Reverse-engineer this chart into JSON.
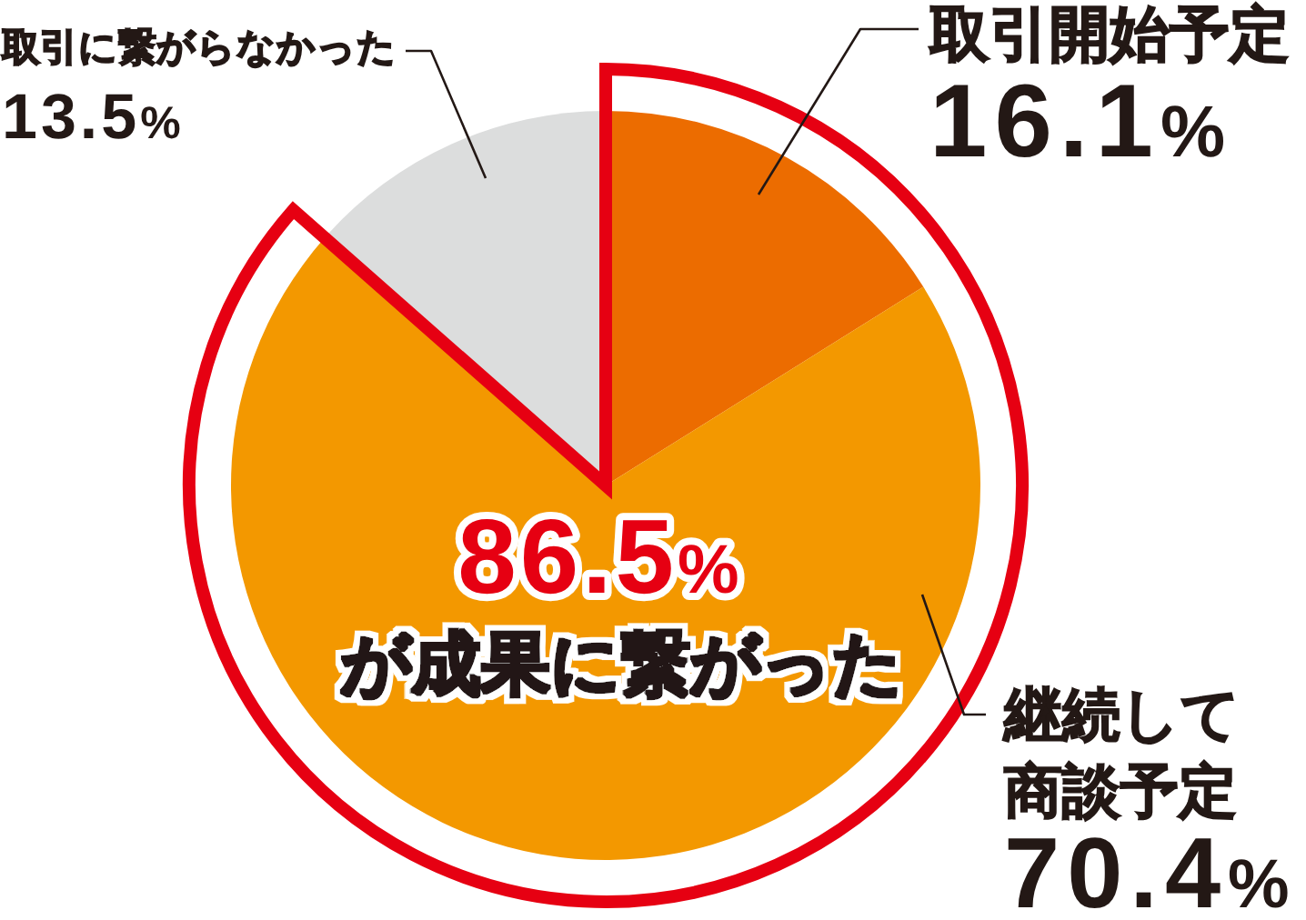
{
  "chart_data": {
    "type": "pie",
    "categories": [
      "取引開始予定",
      "継続して商談予定",
      "取引に繋がらなかった"
    ],
    "values": [
      16.1,
      70.4,
      13.5
    ],
    "colors": [
      "#ec6c00",
      "#f39800",
      "#dcdddd"
    ],
    "value_labels": [
      "16.1%",
      "70.4%",
      "13.5%"
    ],
    "annotations": [
      "86.5%",
      "が成果に繋がった"
    ]
  }
}
